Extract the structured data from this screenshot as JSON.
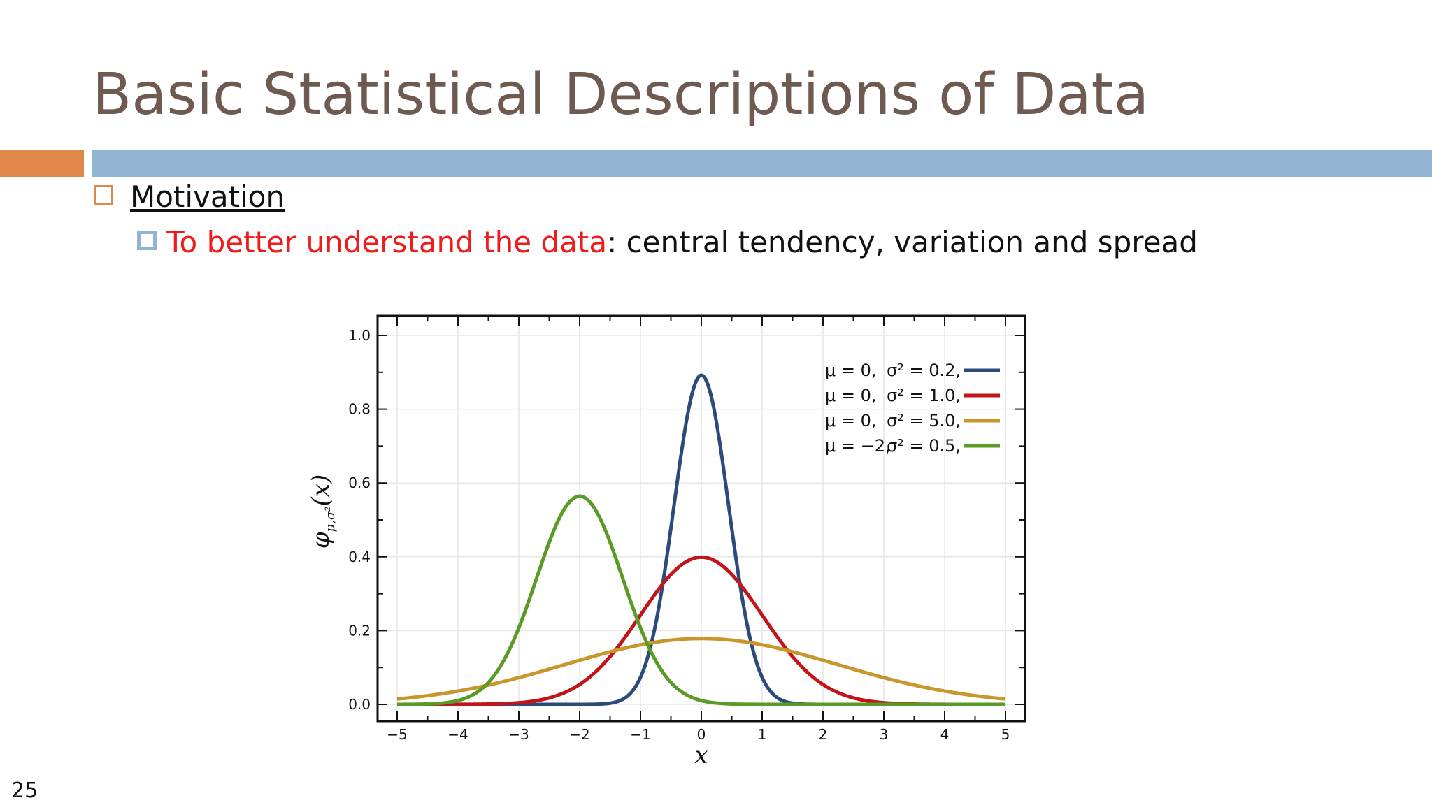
{
  "slide": {
    "title": "Basic Statistical Descriptions of Data",
    "bullet1": "Motivation",
    "bullet2_highlight": "To better understand the data",
    "bullet2_rest": ": central tendency, variation and spread",
    "page_number": "25"
  },
  "chart_data": {
    "type": "line",
    "title": "",
    "xlabel": "x",
    "ylabel": "φμ,σ²(x)",
    "xlim": [
      -5,
      5
    ],
    "ylim": [
      0,
      1.0
    ],
    "x_ticks": [
      "−5",
      "−4",
      "−3",
      "−2",
      "−1",
      "0",
      "1",
      "2",
      "3",
      "4",
      "5"
    ],
    "y_ticks": [
      "0.0",
      "0.2",
      "0.4",
      "0.6",
      "0.8",
      "1.0"
    ],
    "grid": true,
    "legend_position": "top-right",
    "series": [
      {
        "name": "μ=0, σ²=0.2,",
        "mu": 0,
        "variance": 0.2,
        "color": "#2a4b7c"
      },
      {
        "name": "μ=0, σ²=1.0,",
        "mu": 0,
        "variance": 1.0,
        "color": "#c0161a"
      },
      {
        "name": "μ=0, σ²=5.0,",
        "mu": 0,
        "variance": 5.0,
        "color": "#c8962a"
      },
      {
        "name": "μ=−2, σ²=0.5,",
        "mu": -2,
        "variance": 0.5,
        "color": "#5a9a26"
      }
    ],
    "legend": [
      {
        "mu": "μ = 0,",
        "var": "σ² = 0.2,"
      },
      {
        "mu": "μ = 0,",
        "var": "σ² = 1.0,"
      },
      {
        "mu": "μ = 0,",
        "var": "σ² = 5.0,"
      },
      {
        "mu": "μ = −2,",
        "var": "σ² = 0.5,"
      }
    ]
  }
}
